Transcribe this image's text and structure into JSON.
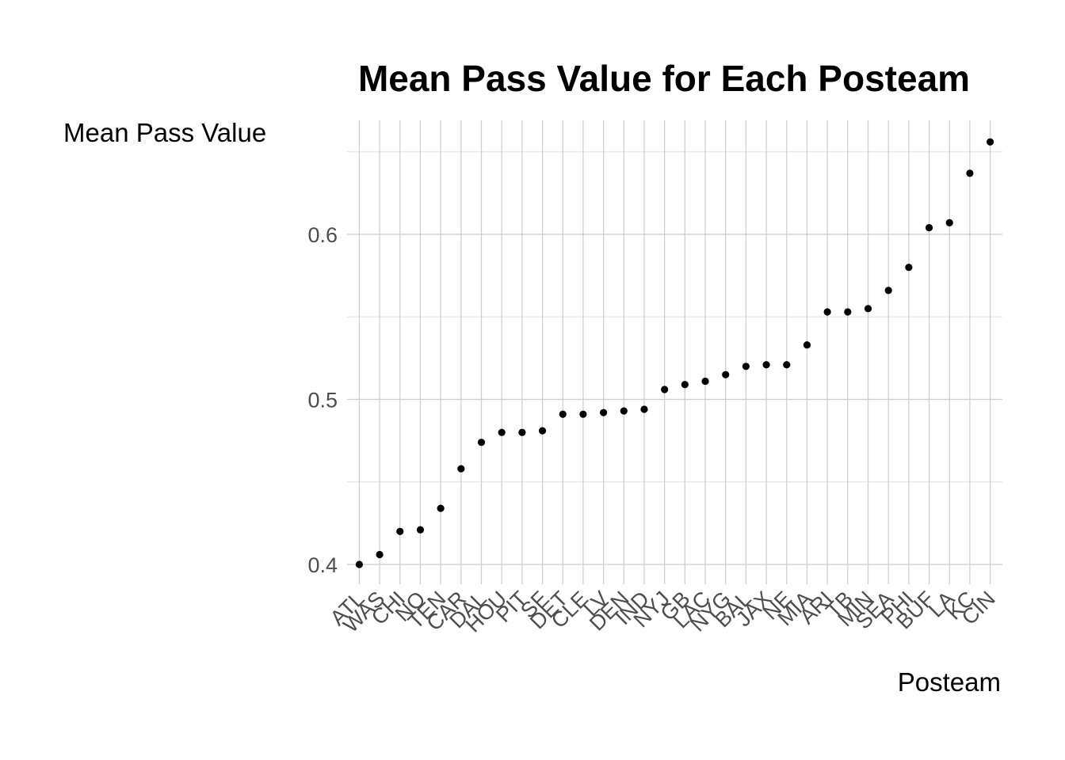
{
  "chart_data": {
    "type": "scatter",
    "title": "Mean Pass Value for Each Posteam",
    "xlabel": "Posteam",
    "ylabel": "Mean Pass Value",
    "categories": [
      "ATL",
      "WAS",
      "CHI",
      "NO",
      "TEN",
      "CAR",
      "DAL",
      "HOU",
      "PIT",
      "SF",
      "DET",
      "CLE",
      "LV",
      "DEN",
      "IND",
      "NYJ",
      "GB",
      "LAC",
      "NYG",
      "BAL",
      "JAX",
      "NE",
      "MIA",
      "ARI",
      "TB",
      "MIN",
      "SEA",
      "PHI",
      "BUF",
      "LA",
      "KC",
      "CIN"
    ],
    "values": [
      0.4,
      0.406,
      0.42,
      0.421,
      0.434,
      0.458,
      0.474,
      0.48,
      0.48,
      0.481,
      0.491,
      0.491,
      0.492,
      0.493,
      0.494,
      0.506,
      0.509,
      0.511,
      0.515,
      0.52,
      0.521,
      0.521,
      0.533,
      0.553,
      0.553,
      0.555,
      0.566,
      0.58,
      0.604,
      0.607,
      0.637,
      0.656
    ],
    "yticks": [
      0.4,
      0.5,
      0.6
    ],
    "ytick_labels": [
      "0.4",
      "0.5",
      "0.6"
    ],
    "ylim": [
      0.39,
      0.666
    ],
    "grid": true,
    "legend": "none",
    "point_color": "#000000"
  }
}
